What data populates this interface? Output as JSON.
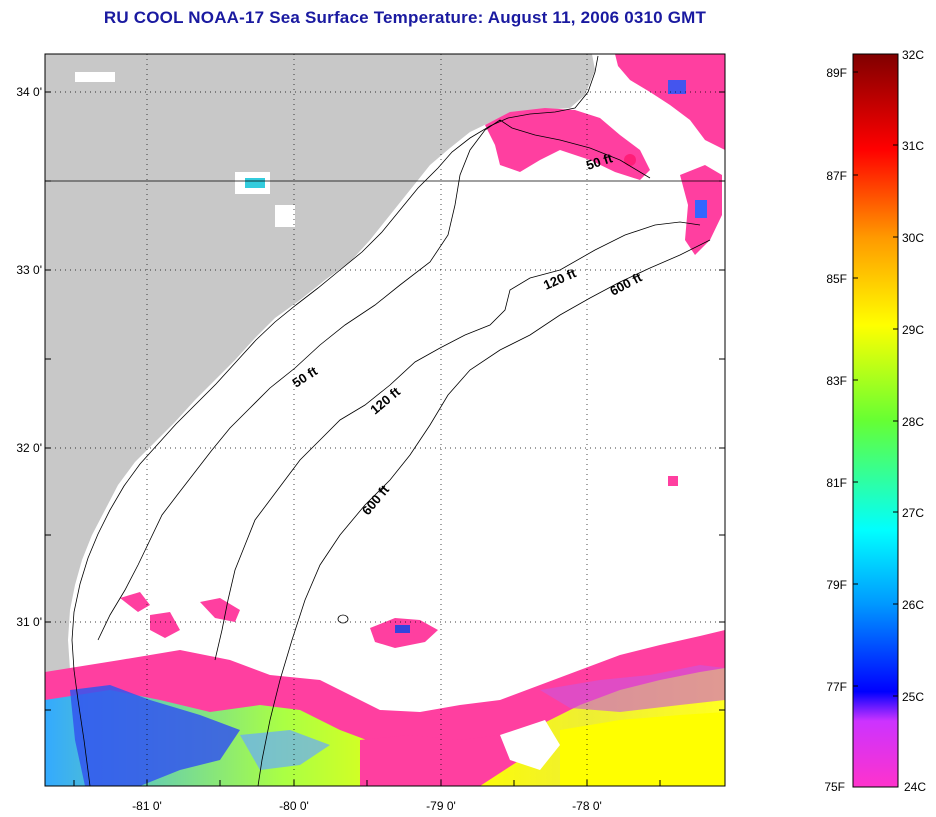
{
  "title": "RU COOL  NOAA-17  Sea Surface Temperature:  August 11, 2006 0310 GMT",
  "colors": {
    "land": "#c8c8c8",
    "cloud": "#ffffff",
    "warm_pink": "#ff3fa0",
    "title": "#1a1aa0"
  },
  "map": {
    "lat_labels": [
      "34 0'",
      "33 0'",
      "32 0'",
      "31 0'"
    ],
    "lon_labels": [
      "-81 0'",
      "-80 0'",
      "-79 0'",
      "-78 0'"
    ],
    "contours": [
      {
        "label": "50 ft"
      },
      {
        "label": "50 ft"
      },
      {
        "label": "120 ft"
      },
      {
        "label": "120 ft"
      },
      {
        "label": "600 ft"
      },
      {
        "label": "600 ft"
      }
    ]
  },
  "colorbar": {
    "fahrenheit_labels": [
      "89F",
      "87F",
      "85F",
      "83F",
      "81F",
      "79F",
      "77F",
      "75F"
    ],
    "celsius_labels": [
      "32C",
      "31C",
      "30C",
      "29C",
      "28C",
      "27C",
      "26C",
      "25C",
      "24C"
    ]
  }
}
